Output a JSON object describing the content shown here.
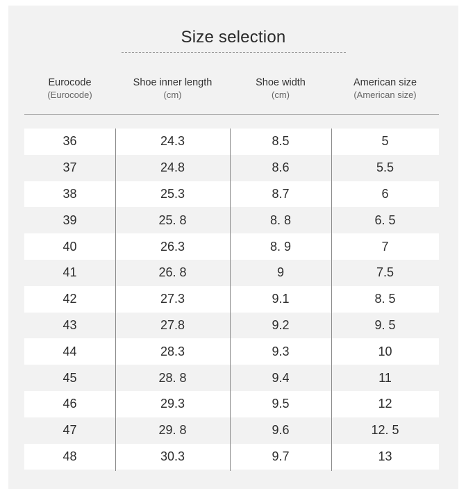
{
  "title": "Size selection",
  "headers": [
    {
      "main": "Eurocode",
      "sub": "(Eurocode)"
    },
    {
      "main": "Shoe inner length",
      "sub": "(cm)"
    },
    {
      "main": "Shoe width",
      "sub": "(cm)"
    },
    {
      "main": "American size",
      "sub": "(American size)"
    }
  ],
  "rows": [
    [
      "36",
      "24.3",
      "8.5",
      "5"
    ],
    [
      "37",
      "24.8",
      "8.6",
      "5.5"
    ],
    [
      "38",
      "25.3",
      "8.7",
      "6"
    ],
    [
      "39",
      "25. 8",
      "8. 8",
      "6. 5"
    ],
    [
      "40",
      "26.3",
      "8. 9",
      "7"
    ],
    [
      "41",
      "26. 8",
      "9",
      "7.5"
    ],
    [
      "42",
      "27.3",
      "9.1",
      "8. 5"
    ],
    [
      "43",
      "27.8",
      "9.2",
      "9. 5"
    ],
    [
      "44",
      "28.3",
      "9.3",
      "10"
    ],
    [
      "45",
      "28. 8",
      "9.4",
      "11"
    ],
    [
      "46",
      "29.3",
      "9.5",
      "12"
    ],
    [
      "47",
      "29. 8",
      "9.6",
      "12. 5"
    ],
    [
      "48",
      "30.3",
      "9.7",
      "13"
    ]
  ]
}
